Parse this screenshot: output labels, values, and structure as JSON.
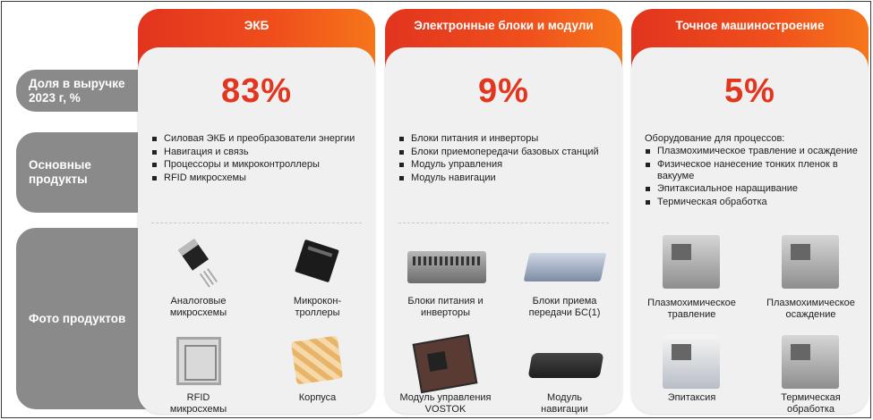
{
  "rows": {
    "share": "Доля в выручке 2023 г, %",
    "products": "Основные продукты",
    "photos": "Фото продуктов"
  },
  "columns": [
    {
      "title": "ЭКБ",
      "percent": "83%",
      "bullets": [
        "Силовая ЭКБ и преобразователи энергии",
        "Навигация и связь",
        "Процессоры и микроконтроллеры",
        "RFID микросхемы"
      ],
      "photos": [
        {
          "lines": [
            "Аналоговые",
            "микросхемы"
          ]
        },
        {
          "lines": [
            "Микрокон-",
            "троллеры"
          ]
        },
        {
          "lines": [
            "RFID",
            "микросхемы"
          ]
        },
        {
          "lines": [
            "Корпуса"
          ]
        }
      ]
    },
    {
      "title": "Электронные блоки и модули",
      "percent": "9%",
      "bullets": [
        "Блоки питания и инверторы",
        "Блоки приемопередачи базовых станций",
        "Модуль управления",
        "Модуль навигации"
      ],
      "photos": [
        {
          "lines": [
            "Блоки питания и",
            "инверторы"
          ]
        },
        {
          "lines": [
            "Блоки приема",
            "передачи БС(1)"
          ]
        },
        {
          "lines": [
            "Модуль управления",
            "VOSTOK"
          ]
        },
        {
          "lines": [
            "Модуль",
            "навигации"
          ]
        }
      ]
    },
    {
      "title": "Точное машиностроение",
      "percent": "5%",
      "intro": "Оборудование для процессов:",
      "bullets": [
        "Плазмохимическое травление и осаждение",
        "Физическое нанесение тонких пленок в вакууме",
        "Эпитаксиальное наращивание",
        "Термическая обработка"
      ],
      "photos": [
        {
          "lines": [
            "Плазмохимическое",
            "травление"
          ]
        },
        {
          "lines": [
            "Плазмохимическое",
            "осаждение"
          ]
        },
        {
          "lines": [
            "Эпитаксия"
          ]
        },
        {
          "lines": [
            "Термическая",
            "обработка"
          ]
        }
      ]
    }
  ]
}
